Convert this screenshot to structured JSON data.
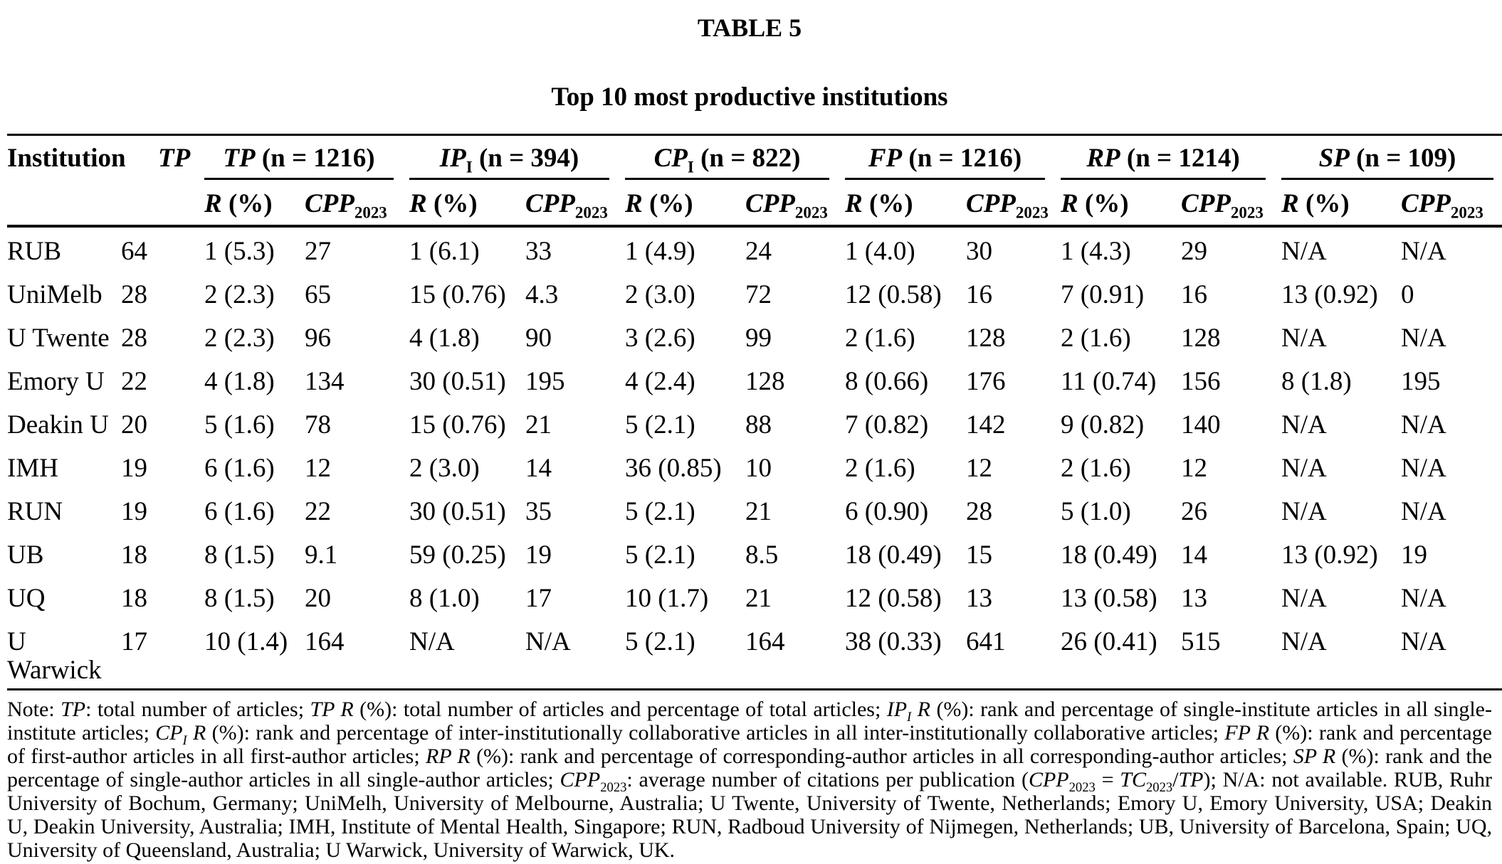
{
  "title": "TABLE 5",
  "subtitle": "Top 10 most productive institutions",
  "table": {
    "institution_header": "Institution",
    "tp_header": "TP",
    "groups": [
      {
        "label": "TP",
        "sub": "",
        "n": "(n = 1216)"
      },
      {
        "label": "IP",
        "sub": "I",
        "n": "(n = 394)"
      },
      {
        "label": "CP",
        "sub": "I",
        "n": "(n = 822)"
      },
      {
        "label": "FP",
        "sub": "",
        "n": "(n = 1216)"
      },
      {
        "label": "RP",
        "sub": "",
        "n": "(n = 1214)"
      },
      {
        "label": "SP",
        "sub": "",
        "n": "(n = 109)"
      }
    ],
    "subheader": {
      "r_main": "R",
      "r_suffix": " (%)",
      "cpp_main": "CPP",
      "cpp_sub": "2023"
    },
    "rows": [
      {
        "institution": "RUB",
        "tp": "64",
        "cells": [
          "1 (5.3)",
          "27",
          "1 (6.1)",
          "33",
          "1 (4.9)",
          "24",
          "1 (4.0)",
          "30",
          "1 (4.3)",
          "29",
          "N/A",
          "N/A"
        ]
      },
      {
        "institution": "UniMelb",
        "tp": "28",
        "cells": [
          "2 (2.3)",
          "65",
          "15 (0.76)",
          "4.3",
          "2 (3.0)",
          "72",
          "12 (0.58)",
          "16",
          "7 (0.91)",
          "16",
          "13 (0.92)",
          "0"
        ]
      },
      {
        "institution": "U Twente",
        "tp": "28",
        "cells": [
          "2 (2.3)",
          "96",
          "4 (1.8)",
          "90",
          "3 (2.6)",
          "99",
          "2 (1.6)",
          "128",
          "2 (1.6)",
          "128",
          "N/A",
          "N/A"
        ]
      },
      {
        "institution": "Emory U",
        "tp": "22",
        "cells": [
          "4 (1.8)",
          "134",
          "30 (0.51)",
          "195",
          "4 (2.4)",
          "128",
          "8 (0.66)",
          "176",
          "11 (0.74)",
          "156",
          "8 (1.8)",
          "195"
        ]
      },
      {
        "institution": "Deakin U",
        "tp": "20",
        "cells": [
          "5 (1.6)",
          "78",
          "15 (0.76)",
          "21",
          "5 (2.1)",
          "88",
          "7 (0.82)",
          "142",
          "9 (0.82)",
          "140",
          "N/A",
          "N/A"
        ]
      },
      {
        "institution": "IMH",
        "tp": "19",
        "cells": [
          "6 (1.6)",
          "12",
          "2 (3.0)",
          "14",
          "36 (0.85)",
          "10",
          "2 (1.6)",
          "12",
          "2 (1.6)",
          "12",
          "N/A",
          "N/A"
        ]
      },
      {
        "institution": "RUN",
        "tp": "19",
        "cells": [
          "6 (1.6)",
          "22",
          "30 (0.51)",
          "35",
          "5 (2.1)",
          "21",
          "6 (0.90)",
          "28",
          "5 (1.0)",
          "26",
          "N/A",
          "N/A"
        ]
      },
      {
        "institution": "UB",
        "tp": "18",
        "cells": [
          "8 (1.5)",
          "9.1",
          "59 (0.25)",
          "19",
          "5 (2.1)",
          "8.5",
          "18 (0.49)",
          "15",
          "18 (0.49)",
          "14",
          "13 (0.92)",
          "19"
        ]
      },
      {
        "institution": "UQ",
        "tp": "18",
        "cells": [
          "8 (1.5)",
          "20",
          "8 (1.0)",
          "17",
          "10 (1.7)",
          "21",
          "12 (0.58)",
          "13",
          "13 (0.58)",
          "13",
          "N/A",
          "N/A"
        ]
      },
      {
        "institution": "U Warwick",
        "tp": "17",
        "cells": [
          "10 (1.4)",
          "164",
          "N/A",
          "N/A",
          "5 (2.1)",
          "164",
          "38 (0.33)",
          "641",
          "26 (0.41)",
          "515",
          "N/A",
          "N/A"
        ]
      }
    ]
  },
  "note": {
    "segments": [
      {
        "t": "Note: ",
        "s": "r"
      },
      {
        "t": "TP",
        "s": "i"
      },
      {
        "t": ": total number of articles; ",
        "s": "r"
      },
      {
        "t": "TP R",
        "s": "i"
      },
      {
        "t": " (%): total number of articles and percentage of total articles; ",
        "s": "r"
      },
      {
        "t": "IP",
        "s": "i"
      },
      {
        "t": "I",
        "s": "isub"
      },
      {
        "t": " R",
        "s": "i"
      },
      {
        "t": " (%): rank and percentage of single-institute articles in all single-institute articles; ",
        "s": "r"
      },
      {
        "t": "CP",
        "s": "i"
      },
      {
        "t": "I",
        "s": "isub"
      },
      {
        "t": " R",
        "s": "i"
      },
      {
        "t": " (%): rank and percentage of inter-institutionally collaborative articles in all inter-institutionally collaborative articles; ",
        "s": "r"
      },
      {
        "t": "FP R",
        "s": "i"
      },
      {
        "t": " (%): rank and percentage of first-author articles in all first-author articles; ",
        "s": "r"
      },
      {
        "t": "RP R",
        "s": "i"
      },
      {
        "t": " (%): rank and percentage of corresponding-author articles in all corresponding-author articles; ",
        "s": "r"
      },
      {
        "t": "SP R",
        "s": "i"
      },
      {
        "t": " (%): rank and the percentage of single-author articles in all single-author articles; ",
        "s": "r"
      },
      {
        "t": "CPP",
        "s": "i"
      },
      {
        "t": "2023",
        "s": "sub"
      },
      {
        "t": ": average number of citations per publication (",
        "s": "r"
      },
      {
        "t": "CPP",
        "s": "i"
      },
      {
        "t": "2023",
        "s": "sub"
      },
      {
        "t": " = ",
        "s": "r"
      },
      {
        "t": "TC",
        "s": "i"
      },
      {
        "t": "2023",
        "s": "sub"
      },
      {
        "t": "/",
        "s": "r"
      },
      {
        "t": "TP",
        "s": "i"
      },
      {
        "t": "); N/A: not available. RUB, Ruhr University of Bochum, Germany; UniMelh, University of Melbourne, Australia; U Twente, University of Twente, Netherlands; Emory U, Emory University, USA; Deakin U, Deakin University, Australia; IMH, Institute of Mental Health, Singapore; RUN, Radboud University of Nijmegen, Netherlands; UB, University of Barcelona, Spain; UQ, University of Queensland, Australia; U Warwick, University of Warwick, UK.",
        "s": "r"
      }
    ]
  }
}
